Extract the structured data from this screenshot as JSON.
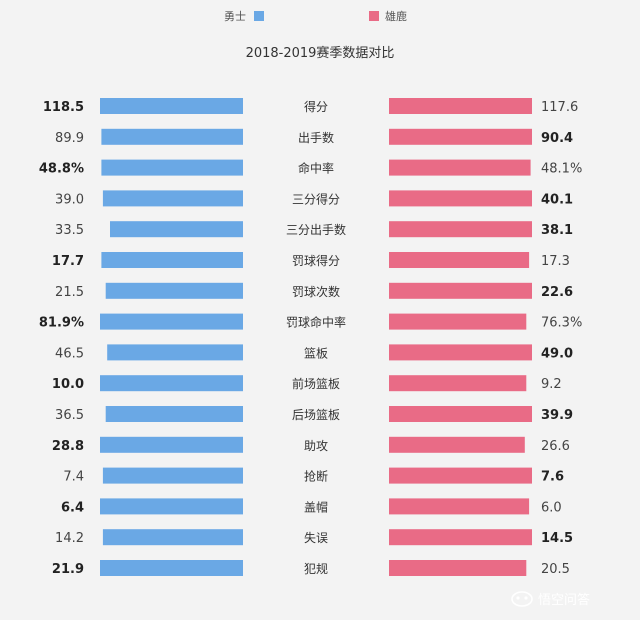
{
  "chart_data": {
    "type": "bar",
    "title": "2018-2019赛季数据对比",
    "legend_position": "top",
    "series": [
      {
        "name": "勇士",
        "color": "#6aa8e5",
        "values": [
          118.5,
          89.9,
          48.8,
          39.0,
          33.5,
          17.7,
          21.5,
          81.9,
          46.5,
          10.0,
          36.5,
          28.8,
          7.4,
          6.4,
          14.2,
          21.9
        ],
        "labels": [
          "118.5",
          "89.9",
          "48.8%",
          "39.0",
          "33.5",
          "17.7",
          "21.5",
          "81.9%",
          "46.5",
          "10.0",
          "36.5",
          "28.8",
          "7.4",
          "6.4",
          "14.2",
          "21.9"
        ]
      },
      {
        "name": "雄鹿",
        "color": "#e96b86",
        "values": [
          117.6,
          90.4,
          48.1,
          40.1,
          38.1,
          17.3,
          22.6,
          76.3,
          49.0,
          9.2,
          39.9,
          26.6,
          7.6,
          6.0,
          14.5,
          20.5
        ],
        "labels": [
          "117.6",
          "90.4",
          "48.1%",
          "40.1",
          "38.1",
          "17.3",
          "22.6",
          "76.3%",
          "49.0",
          "9.2",
          "39.9",
          "26.6",
          "7.6",
          "6.0",
          "14.5",
          "20.5"
        ]
      }
    ],
    "categories": [
      "得分",
      "出手数",
      "命中率",
      "三分得分",
      "三分出手数",
      "罚球得分",
      "罚球次数",
      "罚球命中率",
      "篮板",
      "前场篮板",
      "后场篮板",
      "助攻",
      "抢断",
      "盖帽",
      "失误",
      "犯规"
    ],
    "bar_fill_fraction": {
      "warriors": [
        1.0,
        0.99,
        0.99,
        0.98,
        0.93,
        0.99,
        0.96,
        1.0,
        0.95,
        1.0,
        0.96,
        1.0,
        0.98,
        1.0,
        0.98,
        1.0
      ],
      "bucks": [
        1.0,
        1.0,
        0.99,
        1.0,
        1.0,
        0.98,
        1.0,
        0.96,
        1.0,
        0.96,
        1.0,
        0.95,
        1.0,
        0.98,
        1.0,
        0.96
      ]
    },
    "bold_winner": [
      "warriors",
      "bucks",
      "warriors",
      "bucks",
      "bucks",
      "warriors",
      "bucks",
      "warriors",
      "bucks",
      "warriors",
      "bucks",
      "warriors",
      "bucks",
      "warriors",
      "bucks",
      "warriors"
    ]
  },
  "watermark": {
    "text": "悟空问答",
    "icon": "wukong-logo-icon"
  }
}
